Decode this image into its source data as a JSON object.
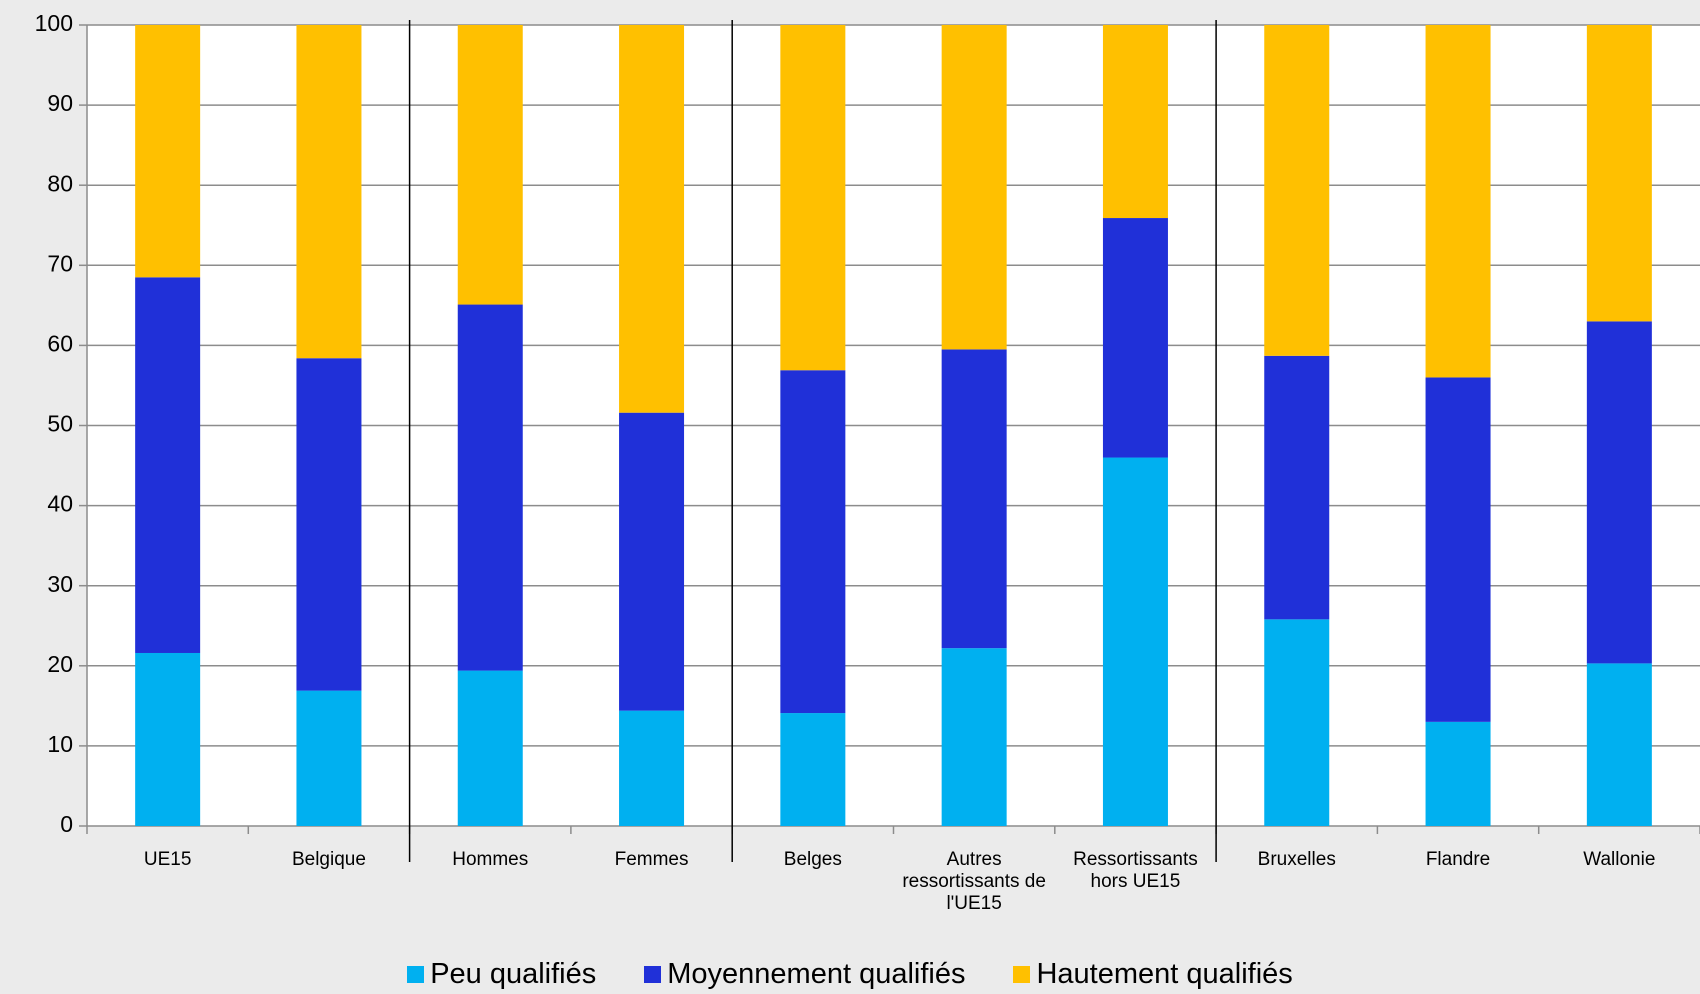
{
  "chart_data": {
    "type": "stacked_bar",
    "categories": [
      "UE15",
      "Belgique",
      "Hommes",
      "Femmes",
      "Belges",
      "Autres ressortissants de l'UE15",
      "Ressortissants hors UE15",
      "Bruxelles",
      "Flandre",
      "Wallonie"
    ],
    "series": [
      {
        "name": "Peu qualifiés",
        "color": "#00b0f0",
        "values": [
          21.6,
          16.9,
          19.4,
          14.4,
          14.1,
          22.2,
          46.0,
          25.8,
          13.0,
          20.3
        ]
      },
      {
        "name": "Moyennement qualifiés",
        "color": "#2030d8",
        "values": [
          46.9,
          41.5,
          45.7,
          37.2,
          42.8,
          37.3,
          29.9,
          32.9,
          43.0,
          42.7
        ]
      },
      {
        "name": "Hautement qualifiés",
        "color": "#ffc000",
        "values": [
          31.5,
          41.6,
          34.9,
          48.4,
          43.1,
          40.5,
          24.1,
          41.3,
          44.0,
          37.0
        ]
      }
    ],
    "ylim": [
      0,
      100
    ],
    "yticks": [
      0,
      10,
      20,
      30,
      40,
      50,
      60,
      70,
      80,
      90,
      100
    ],
    "grid": true
  }
}
